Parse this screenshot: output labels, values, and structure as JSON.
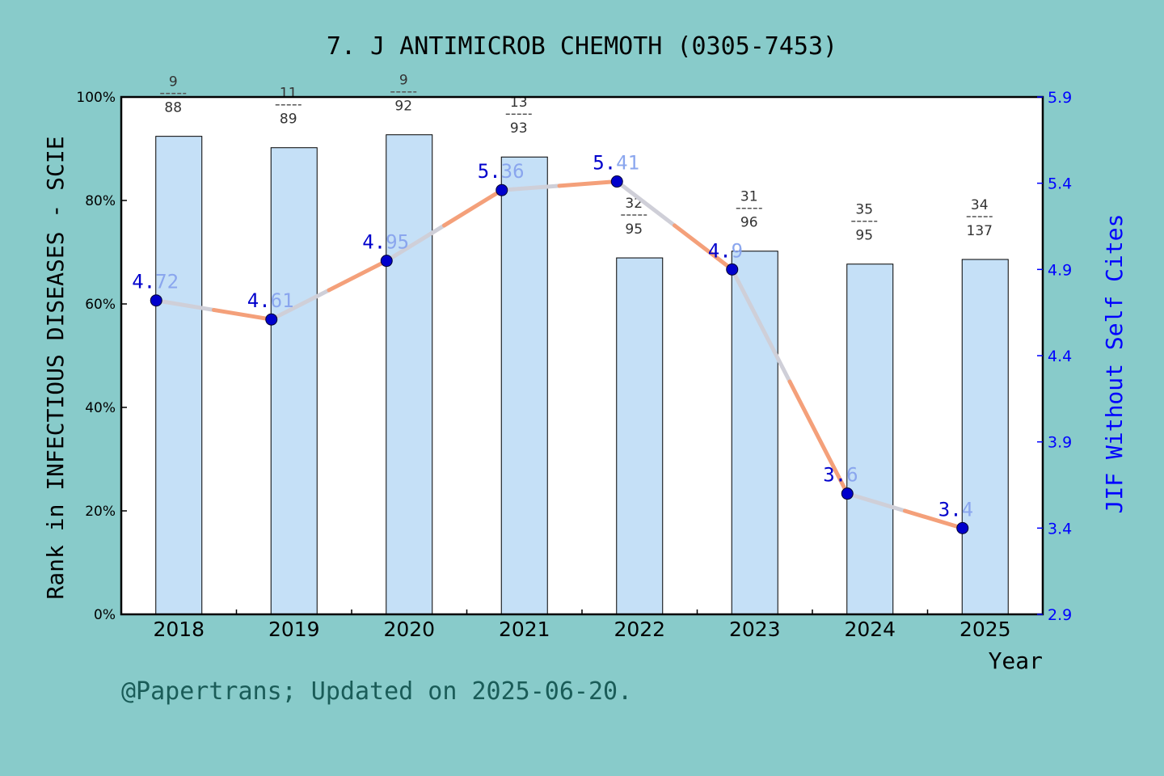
{
  "chart_data": {
    "type": "bar",
    "title": "7. J ANTIMICROB CHEMOTH (0305-7453)",
    "xlabel": "Year",
    "ylabel": "Rank in INFECTIOUS DISEASES - SCIE",
    "y2label": "JIF Without Self Cites",
    "categories": [
      "2018",
      "2019",
      "2020",
      "2021",
      "2022",
      "2023",
      "2024",
      "2025"
    ],
    "ylim": [
      0,
      100
    ],
    "y_ticks": [
      "0%",
      "20%",
      "40%",
      "60%",
      "80%",
      "100%"
    ],
    "y2lim": [
      2.9,
      5.9
    ],
    "y2_ticks": [
      "2.9",
      "3.4",
      "3.9",
      "4.4",
      "4.9",
      "5.4",
      "5.9"
    ],
    "series": [
      {
        "type": "bar",
        "values": [
          92.4,
          90.2,
          92.7,
          88.4,
          68.9,
          70.2,
          67.7,
          68.6
        ],
        "rank": [
          "9",
          "11",
          "9",
          "13",
          "32",
          "31",
          "35",
          "34"
        ],
        "total": [
          "88",
          "89",
          "92",
          "93",
          "95",
          "96",
          "95",
          "137"
        ],
        "color": "#c5e0f7"
      },
      {
        "type": "line",
        "values": [
          4.72,
          4.61,
          4.95,
          5.36,
          5.41,
          4.9,
          3.6,
          3.4
        ],
        "labels": [
          "4.72",
          "4.61",
          "4.95",
          "5.36",
          "5.41",
          "4.9",
          "3.6",
          "3.4"
        ],
        "color": "#f4a07a"
      }
    ],
    "grid": false
  },
  "footer": "@Papertrans; Updated on 2025-06-20."
}
